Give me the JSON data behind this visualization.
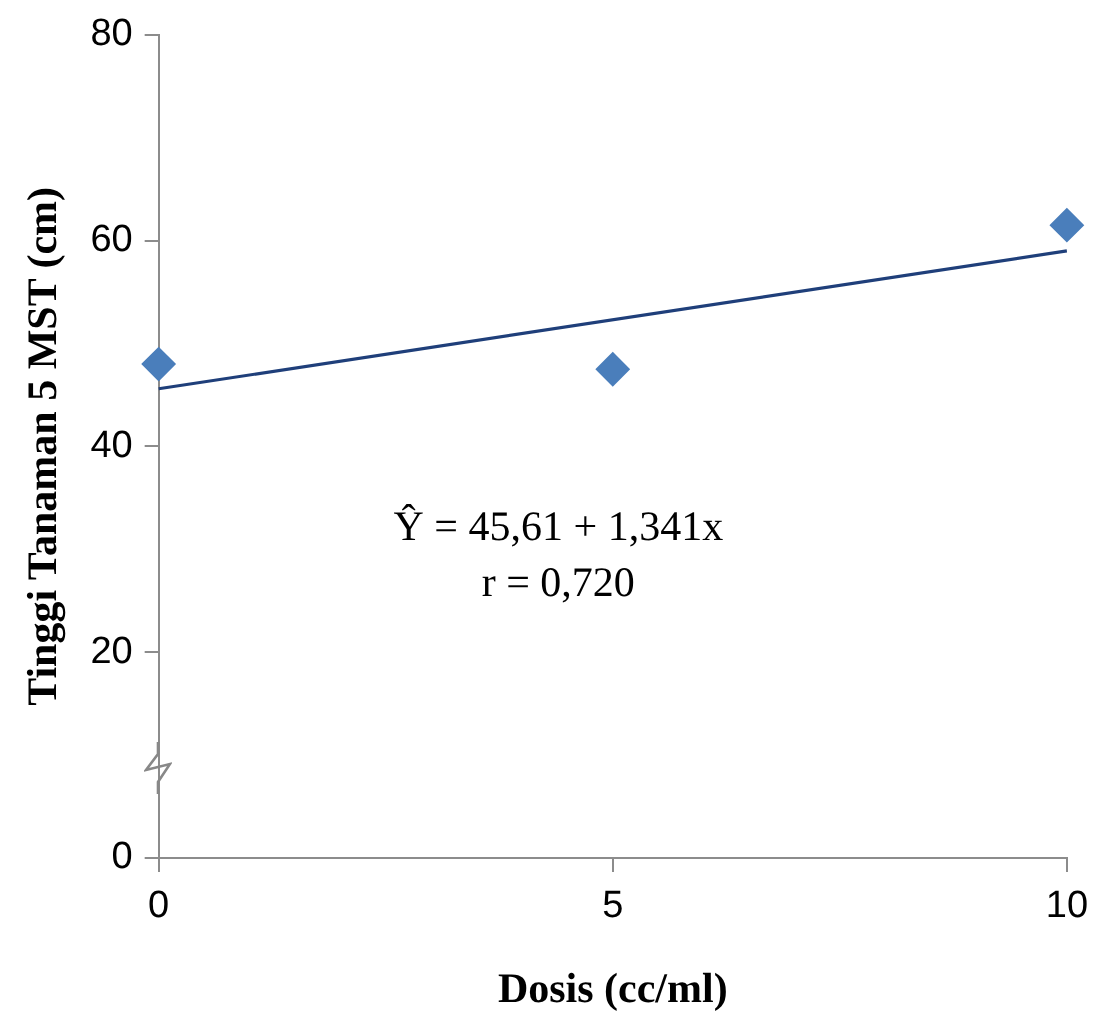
{
  "chart_data": {
    "type": "scatter",
    "xlabel": "Dosis (cc/ml)",
    "ylabel": "Tinggi Tanaman 5 MST (cm)",
    "xlim": [
      0,
      10
    ],
    "xticks": [
      0,
      5,
      10
    ],
    "ylim": [
      0,
      80
    ],
    "yticks": [
      0,
      20,
      40,
      60,
      80
    ],
    "grid": false,
    "legend": false,
    "marker": "diamond",
    "series": [
      {
        "color": "#4a7ebb",
        "x": [
          0,
          5,
          10
        ],
        "values": [
          48,
          47.5,
          61.5
        ]
      },
      {
        "type": "line",
        "color": "#1f3f7a",
        "x": [
          0,
          10
        ],
        "values": [
          45.6,
          59
        ],
        "marker": "none"
      }
    ],
    "annotations": [
      "Ŷ = 45,61 + 1,341x",
      "r = 0,720"
    ]
  }
}
